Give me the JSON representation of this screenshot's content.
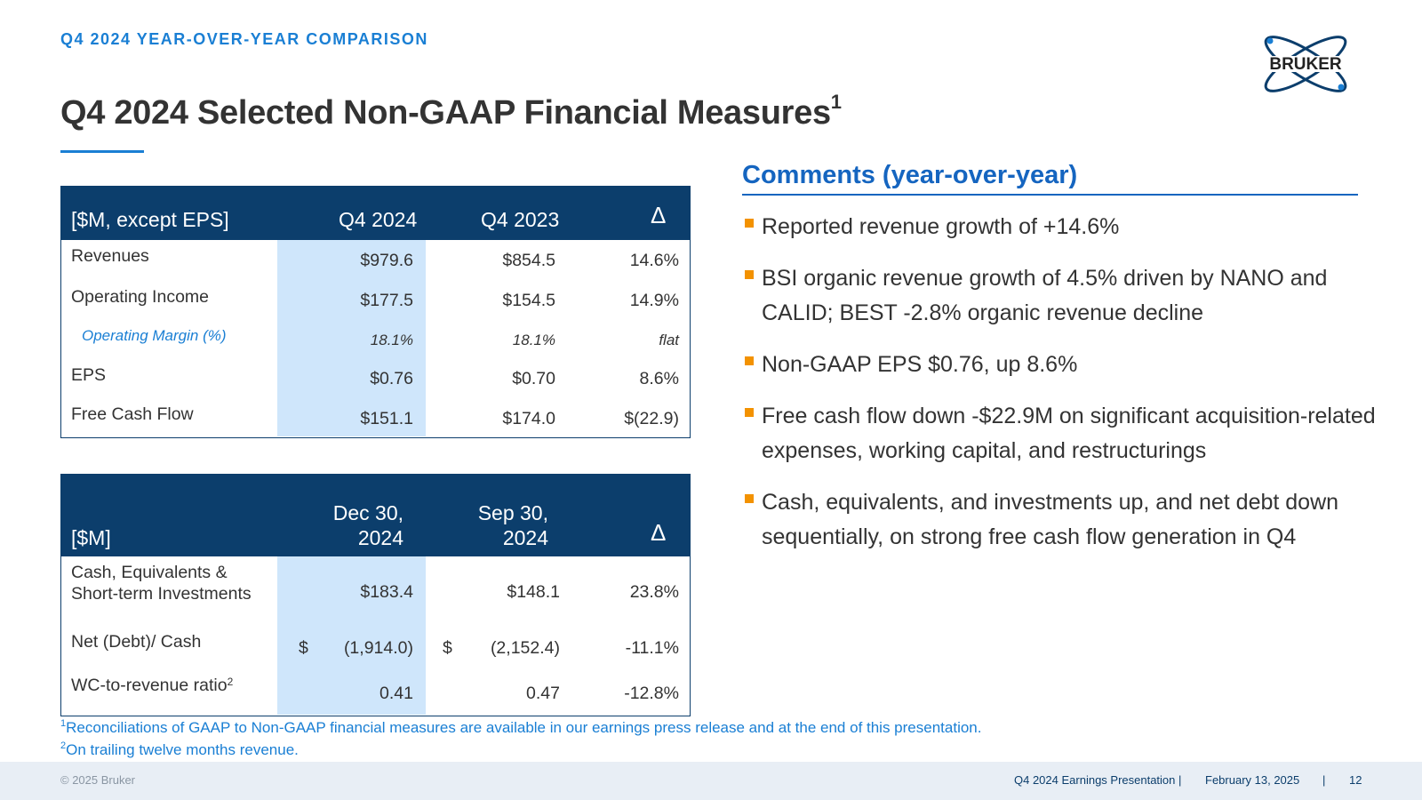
{
  "header": {
    "eyebrow": "Q4 2024 YEAR-OVER-YEAR COMPARISON",
    "title": "Q4 2024 Selected Non-GAAP Financial Measures",
    "title_superscript": "1",
    "logo_text": "BRUKER"
  },
  "table1": {
    "headers": [
      "[$M, except EPS]",
      "Q4 2024",
      "Q4 2023",
      "Δ"
    ],
    "rows": [
      {
        "label": "Revenues",
        "q4_2024": "$979.6",
        "q4_2023": "$854.5",
        "delta": "14.6%"
      },
      {
        "label": "Operating Income",
        "q4_2024": "$177.5",
        "q4_2023": "$154.5",
        "delta": "14.9%"
      },
      {
        "label": "Operating Margin (%)",
        "q4_2024": "18.1%",
        "q4_2023": "18.1%",
        "delta": "flat"
      },
      {
        "label": "EPS",
        "q4_2024": "$0.76",
        "q4_2023": "$0.70",
        "delta": "8.6%"
      },
      {
        "label": "Free Cash Flow",
        "q4_2024": "$151.1",
        "q4_2023": "$174.0",
        "delta": "$(22.9)"
      }
    ]
  },
  "table2": {
    "headers": {
      "label": "[$M]",
      "col1_line1": "Dec 30,",
      "col1_line2": "2024",
      "col2_line1": "Sep 30,",
      "col2_line2": "2024",
      "delta": "Δ"
    },
    "rows": [
      {
        "label_line1": "Cash, Equivalents &",
        "label_line2": "Short-term Investments",
        "dec": "$183.4",
        "sep": "$148.1",
        "delta": "23.8%"
      },
      {
        "label": "Net (Debt)/ Cash",
        "dec_currency": "$",
        "dec": "(1,914.0)",
        "sep_currency": "$",
        "sep": "(2,152.4)",
        "delta": "-11.1%"
      },
      {
        "label": "WC-to-revenue ratio",
        "label_superscript": "2",
        "dec": "0.41",
        "sep": "0.47",
        "delta": "-12.8%"
      }
    ]
  },
  "comments": {
    "title": "Comments (year-over-year)",
    "bullets": [
      "Reported revenue growth of +14.6%",
      "BSI organic revenue growth of 4.5% driven by NANO and CALID; BEST -2.8% organic revenue decline",
      "Non-GAAP EPS $0.76, up 8.6%",
      "Free cash flow down -$22.9M on significant acquisition-related expenses, working capital, and restructurings",
      "Cash, equivalents, and investments up, and net debt down sequentially, on strong free cash flow generation in Q4"
    ]
  },
  "footnotes": {
    "fn1_mark": "1",
    "fn1": "Reconciliations of GAAP to Non-GAAP financial measures are available in our earnings press release and at the end of this presentation.",
    "fn2_mark": "2",
    "fn2": "On trailing twelve months revenue."
  },
  "footer": {
    "copyright": "© 2025 Bruker",
    "presentation": "Q4 2024 Earnings Presentation |",
    "date": "February 13, 2025",
    "separator": "|",
    "page": "12"
  },
  "colors": {
    "navy": "#0c3e6c",
    "accent_blue": "#1a7fd4",
    "highlight_blue": "#cfe6fb",
    "bullet_orange": "#f39200"
  }
}
